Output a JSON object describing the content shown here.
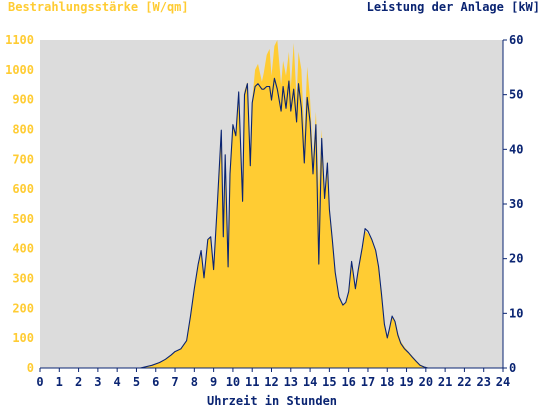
{
  "colors": {
    "irradiance": "#FFCC33",
    "power": "#0A2472",
    "plot_bg": "#DCDCDC",
    "left_axis_text": "#FFCC33",
    "right_axis_text": "#0A2472",
    "x_axis_text": "#0A2472"
  },
  "chart_data": {
    "type": "area",
    "left_axis_title": "Bestrahlungsstärke [W/qm]",
    "right_axis_title": "Leistung der Anlage [kW]",
    "xlabel": "Uhrzeit in Stunden",
    "xlim": [
      0,
      24
    ],
    "ylim_left": [
      0,
      1100
    ],
    "ylim_right": [
      0,
      60
    ],
    "x_ticks": [
      "0",
      "1",
      "2",
      "3",
      "4",
      "5",
      "6",
      "7",
      "8",
      "9",
      "10",
      "11",
      "12",
      "13",
      "14",
      "15",
      "16",
      "17",
      "18",
      "19",
      "20",
      "21",
      "22",
      "23",
      "24"
    ],
    "left_ticks": [
      "0",
      "100",
      "200",
      "300",
      "400",
      "500",
      "600",
      "700",
      "800",
      "900",
      "1000",
      "1100"
    ],
    "right_ticks": [
      "0",
      "10",
      "20",
      "30",
      "40",
      "50",
      "60"
    ],
    "series": [
      {
        "name": "Bestrahlungsstärke [W/qm]",
        "axis": "left",
        "style": "filled-area",
        "x": [
          0,
          5.2,
          5.8,
          6.2,
          6.5,
          6.8,
          7.0,
          7.3,
          7.6,
          7.8,
          8.0,
          8.2,
          8.35,
          8.5,
          8.7,
          8.85,
          9.0,
          9.2,
          9.4,
          9.5,
          9.6,
          9.75,
          9.85,
          10.0,
          10.15,
          10.3,
          10.5,
          10.6,
          10.75,
          10.9,
          11.0,
          11.15,
          11.3,
          11.5,
          11.6,
          11.75,
          11.9,
          12.0,
          12.15,
          12.3,
          12.5,
          12.6,
          12.75,
          12.9,
          13.0,
          13.15,
          13.3,
          13.4,
          13.55,
          13.7,
          13.85,
          14.0,
          14.15,
          14.3,
          14.45,
          14.6,
          14.75,
          14.9,
          15.0,
          15.15,
          15.3,
          15.5,
          15.7,
          15.85,
          16.0,
          16.15,
          16.35,
          16.5,
          16.7,
          16.85,
          17.0,
          17.2,
          17.4,
          17.55,
          17.7,
          17.85,
          18.0,
          18.1,
          18.25,
          18.4,
          18.55,
          18.7,
          18.9,
          19.1,
          19.3,
          19.5,
          19.7,
          19.9,
          20.1,
          20.3,
          24
        ],
        "y": [
          0,
          0,
          10,
          20,
          30,
          45,
          55,
          65,
          90,
          170,
          260,
          340,
          390,
          300,
          430,
          440,
          330,
          560,
          800,
          440,
          720,
          340,
          650,
          820,
          780,
          930,
          560,
          930,
          960,
          680,
          900,
          1000,
          1020,
          960,
          990,
          1050,
          1070,
          980,
          1080,
          1100,
          950,
          1030,
          980,
          1060,
          940,
          1090,
          900,
          1060,
          1000,
          780,
          1010,
          900,
          700,
          860,
          600,
          800,
          560,
          700,
          540,
          430,
          320,
          240,
          215,
          220,
          260,
          360,
          270,
          330,
          400,
          460,
          450,
          430,
          390,
          340,
          250,
          150,
          110,
          130,
          175,
          160,
          120,
          90,
          70,
          55,
          40,
          25,
          12,
          5,
          2,
          0,
          0
        ]
      },
      {
        "name": "Leistung der Anlage [kW]",
        "axis": "right",
        "style": "line",
        "x": [
          0,
          5.2,
          5.8,
          6.2,
          6.5,
          6.8,
          7.0,
          7.3,
          7.6,
          7.8,
          8.0,
          8.2,
          8.35,
          8.5,
          8.7,
          8.85,
          9.0,
          9.2,
          9.4,
          9.5,
          9.6,
          9.75,
          9.85,
          10.0,
          10.15,
          10.3,
          10.5,
          10.6,
          10.75,
          10.9,
          11.0,
          11.15,
          11.3,
          11.5,
          11.6,
          11.75,
          11.9,
          12.0,
          12.15,
          12.3,
          12.5,
          12.6,
          12.75,
          12.9,
          13.0,
          13.15,
          13.3,
          13.4,
          13.55,
          13.7,
          13.85,
          14.0,
          14.15,
          14.3,
          14.45,
          14.6,
          14.75,
          14.9,
          15.0,
          15.15,
          15.3,
          15.5,
          15.7,
          15.85,
          16.0,
          16.15,
          16.35,
          16.5,
          16.7,
          16.85,
          17.0,
          17.2,
          17.4,
          17.55,
          17.7,
          17.85,
          18.0,
          18.1,
          18.25,
          18.4,
          18.55,
          18.7,
          18.9,
          19.1,
          19.3,
          19.5,
          19.7,
          19.9,
          20.1,
          20.3,
          24
        ],
        "y": [
          0,
          0,
          0.5,
          1,
          1.6,
          2.4,
          3,
          3.5,
          5,
          9.5,
          14.5,
          19,
          21.5,
          16.5,
          23.5,
          24,
          18,
          30.5,
          43.5,
          24,
          39,
          18.5,
          35.5,
          44.5,
          42.5,
          50.5,
          30.5,
          50,
          52,
          37,
          48.5,
          51.5,
          52,
          51,
          51,
          51.5,
          51.5,
          49,
          53,
          51,
          47,
          51.5,
          47.5,
          52.5,
          47,
          51,
          45,
          52,
          47.5,
          37.5,
          49.5,
          45,
          35.5,
          44.5,
          19,
          42,
          31,
          37.5,
          29,
          23.5,
          17.5,
          13,
          11.5,
          12,
          14,
          19.5,
          14.5,
          18,
          22,
          25.5,
          25,
          23.5,
          21.5,
          18.5,
          13.5,
          8,
          5.5,
          7,
          9.5,
          8.5,
          6,
          4.5,
          3.5,
          2.8,
          2,
          1.2,
          0.5,
          0.2,
          0,
          0,
          0
        ]
      }
    ]
  }
}
